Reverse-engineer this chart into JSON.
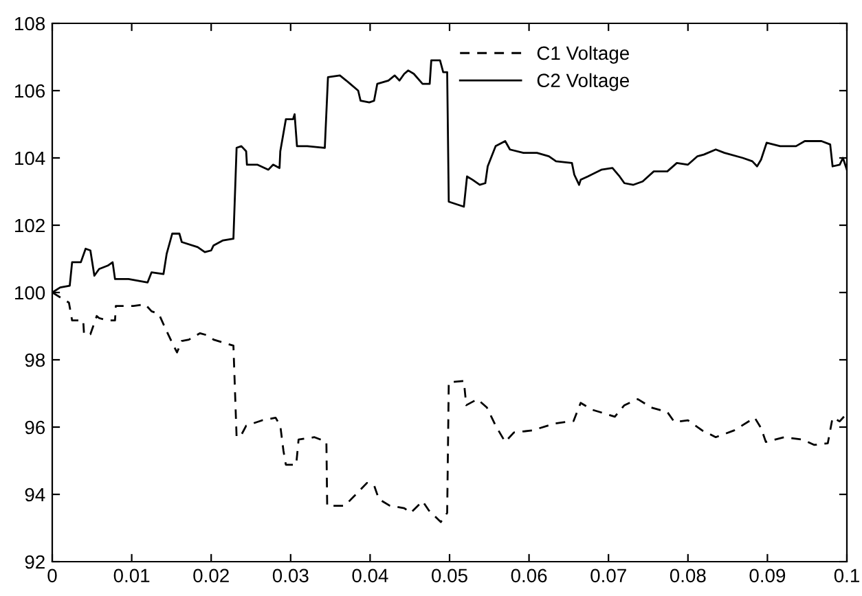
{
  "chart_data": {
    "type": "line",
    "xlim": [
      0,
      0.1
    ],
    "ylim": [
      92,
      108
    ],
    "xticks": [
      0,
      0.01,
      0.02,
      0.03,
      0.04,
      0.05,
      0.06,
      0.07,
      0.08,
      0.09,
      0.1
    ],
    "yticks": [
      92,
      94,
      96,
      98,
      100,
      102,
      104,
      106,
      108
    ],
    "grid": false,
    "legend": "top",
    "marker": "none",
    "series": [
      {
        "name": "C1 Voltage",
        "color": "#000000",
        "line_style": "dashed",
        "x": [
          0,
          0.0021,
          0.0025,
          0.0039,
          0.004,
          0.0048,
          0.0056,
          0.0059,
          0.007,
          0.0079,
          0.008,
          0.0102,
          0.0117,
          0.0125,
          0.0134,
          0.0143,
          0.0151,
          0.0157,
          0.0163,
          0.0172,
          0.0186,
          0.0195,
          0.0203,
          0.0218,
          0.0228,
          0.0232,
          0.0238,
          0.0244,
          0.0264,
          0.0281,
          0.0287,
          0.0291,
          0.0294,
          0.0307,
          0.031,
          0.033,
          0.0345,
          0.0346,
          0.0368,
          0.0385,
          0.0396,
          0.0405,
          0.0411,
          0.0425,
          0.0443,
          0.0451,
          0.0466,
          0.0474,
          0.0489,
          0.0497,
          0.0499,
          0.0518,
          0.0521,
          0.0535,
          0.0547,
          0.0558,
          0.057,
          0.0581,
          0.0604,
          0.0633,
          0.0656,
          0.0665,
          0.0679,
          0.0708,
          0.072,
          0.0737,
          0.0754,
          0.0774,
          0.0783,
          0.08,
          0.0818,
          0.0835,
          0.0858,
          0.0884,
          0.0892,
          0.0898,
          0.0921,
          0.0944,
          0.0959,
          0.0976,
          0.0982,
          0.0991,
          0.0999
        ],
        "values": [
          100,
          99.7,
          99.17,
          99.17,
          98.76,
          98.76,
          99.3,
          99.24,
          99.17,
          99.17,
          99.6,
          99.6,
          99.65,
          99.44,
          99.37,
          98.9,
          98.5,
          98.22,
          98.56,
          98.6,
          98.79,
          98.73,
          98.6,
          98.49,
          98.42,
          95.7,
          95.77,
          96.04,
          96.2,
          96.28,
          96.04,
          95.29,
          94.88,
          94.88,
          95.63,
          95.7,
          95.56,
          93.66,
          93.66,
          94.07,
          94.34,
          94.27,
          93.86,
          93.66,
          93.59,
          93.45,
          93.8,
          93.52,
          93.18,
          93.45,
          97.33,
          97.37,
          96.65,
          96.83,
          96.58,
          96.04,
          95.56,
          95.84,
          95.9,
          96.11,
          96.18,
          96.72,
          96.52,
          96.31,
          96.65,
          96.83,
          96.58,
          96.45,
          96.15,
          96.2,
          95.9,
          95.7,
          95.9,
          96.28,
          95.97,
          95.56,
          95.7,
          95.63,
          95.47,
          95.52,
          96.28,
          96.17,
          96.38
        ]
      },
      {
        "name": "C2 Voltage",
        "color": "#000000",
        "line_style": "solid",
        "x": [
          0,
          0.001,
          0.0022,
          0.0025,
          0.0036,
          0.0042,
          0.0048,
          0.0053,
          0.0059,
          0.007,
          0.0076,
          0.0079,
          0.0096,
          0.012,
          0.0125,
          0.014,
          0.0144,
          0.0151,
          0.016,
          0.0163,
          0.0183,
          0.0192,
          0.02,
          0.0203,
          0.0215,
          0.0228,
          0.0232,
          0.0238,
          0.0244,
          0.0245,
          0.0258,
          0.0272,
          0.0278,
          0.0286,
          0.0287,
          0.0294,
          0.0303,
          0.0305,
          0.0308,
          0.0321,
          0.0343,
          0.0347,
          0.0362,
          0.037,
          0.0385,
          0.0388,
          0.0399,
          0.0405,
          0.0409,
          0.0423,
          0.0431,
          0.0437,
          0.0443,
          0.0448,
          0.0455,
          0.0466,
          0.0475,
          0.0477,
          0.0488,
          0.0492,
          0.0497,
          0.0499,
          0.0518,
          0.0522,
          0.0529,
          0.0538,
          0.0545,
          0.0548,
          0.0558,
          0.057,
          0.0576,
          0.0593,
          0.061,
          0.0625,
          0.0634,
          0.0654,
          0.0657,
          0.0663,
          0.0665,
          0.0674,
          0.0691,
          0.0705,
          0.0714,
          0.072,
          0.0731,
          0.0743,
          0.0757,
          0.0774,
          0.0786,
          0.08,
          0.0812,
          0.082,
          0.0835,
          0.0846,
          0.0869,
          0.0881,
          0.0887,
          0.0892,
          0.0899,
          0.0916,
          0.0936,
          0.0947,
          0.0968,
          0.0979,
          0.0982,
          0.0991,
          0.0995,
          0.1
        ],
        "values": [
          100,
          100.15,
          100.2,
          100.9,
          100.9,
          101.3,
          101.25,
          100.5,
          100.7,
          100.8,
          100.9,
          100.4,
          100.4,
          100.3,
          100.6,
          100.55,
          101.15,
          101.75,
          101.75,
          101.5,
          101.35,
          101.2,
          101.25,
          101.4,
          101.55,
          101.6,
          104.3,
          104.35,
          104.2,
          103.8,
          103.8,
          103.65,
          103.8,
          103.7,
          104.2,
          105.15,
          105.15,
          105.3,
          104.35,
          104.35,
          104.3,
          106.4,
          106.45,
          106.3,
          106,
          105.7,
          105.65,
          105.7,
          106.2,
          106.3,
          106.45,
          106.3,
          106.5,
          106.6,
          106.5,
          106.2,
          106.2,
          106.9,
          106.9,
          106.55,
          106.55,
          102.7,
          102.55,
          103.45,
          103.35,
          103.2,
          103.25,
          103.75,
          104.35,
          104.5,
          104.25,
          104.15,
          104.15,
          104.05,
          103.9,
          103.85,
          103.5,
          103.2,
          103.35,
          103.45,
          103.65,
          103.7,
          103.45,
          103.25,
          103.2,
          103.3,
          103.6,
          103.6,
          103.85,
          103.8,
          104.05,
          104.1,
          104.25,
          104.15,
          104,
          103.9,
          103.75,
          103.95,
          104.45,
          104.35,
          104.35,
          104.5,
          104.5,
          104.4,
          103.75,
          103.8,
          104,
          103.65
        ]
      }
    ]
  }
}
